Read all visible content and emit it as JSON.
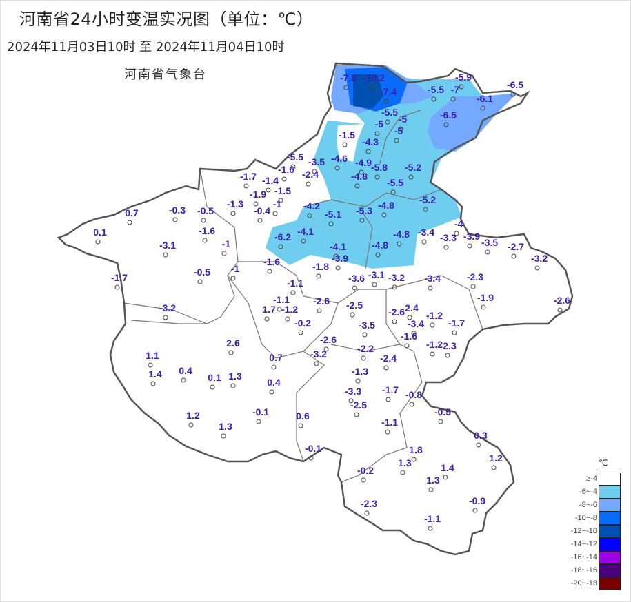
{
  "header": {
    "title": "河南省24小时变温实况图（单位：℃）",
    "subtitle": "2024年11月03日10时   至  2024年11月04日10时",
    "agency": "河南省气象台"
  },
  "legend": {
    "unit": "℃",
    "items": [
      {
        "label": "≥-4",
        "color": "#ffffff"
      },
      {
        "label": "-6~-4",
        "color": "#6fcdf0"
      },
      {
        "label": "-8~-6",
        "color": "#74a9ff"
      },
      {
        "label": "-10~-8",
        "color": "#0a6cfa"
      },
      {
        "label": "-12~-10",
        "color": "#0050b2"
      },
      {
        "label": "-14~-12",
        "color": "#0000ff"
      },
      {
        "label": "-16~-14",
        "color": "#9b00e6"
      },
      {
        "label": "-18~-16",
        "color": "#4a0078"
      },
      {
        "label": "-20~-18",
        "color": "#7a0000"
      }
    ]
  },
  "colors": {
    "label": "#3b1fb0",
    "border": "#555555"
  },
  "stations": [
    "-7.8",
    "-10.2",
    "-7.4",
    "-5.9",
    "-5.5",
    "-7",
    "-6.5",
    "-6.1",
    "-6.5",
    "-5.5",
    "-5",
    "-5",
    "-5",
    "-1.5",
    "-4.3",
    "-5.5",
    "-3.5",
    "-4.6",
    "-4.9",
    "-5.8",
    "-5.2",
    "-1.6",
    "-2.4",
    "-4.8",
    "-5.5",
    "-1.7",
    "-1.4",
    "-1.9",
    "-1.5",
    "-1.3",
    "-1",
    "-0.4",
    "-0.3",
    "-0.5",
    "0.7",
    "0.1",
    "-1.6",
    "-4.2",
    "-5.1",
    "-5.3",
    "-4.8",
    "-5.2",
    "-4",
    "-4.1",
    "-6.2",
    "-4.8",
    "-3.4",
    "-3.3",
    "-3.9",
    "-3.5",
    "-2.7",
    "-3.2",
    "-4.1",
    "-4.8",
    "-3.9",
    "-1",
    "-3.1",
    "-1.6",
    "-1.8",
    "-1",
    "-0.5",
    "-1.7",
    "-3.6",
    "-3.1",
    "-3.2",
    "-3.4",
    "-2.3",
    "-1.1",
    "-1.9",
    "-2.6",
    "-1.1",
    "-2.6",
    "-3.2",
    "1.7",
    "-1.2",
    "-2.5",
    "-2.6",
    "2.4",
    "-1.2",
    "-1.7",
    "-3.4",
    "-0.2",
    "-3.5",
    "-1.6",
    "-2.6",
    "2.6",
    "-1.2",
    "2.3",
    "-2.2",
    "-3.2",
    "1.1",
    "0.7",
    "-2.4",
    "1.4",
    "0.4",
    "0.1",
    "1.3",
    "-1.3",
    "0.4",
    "-3.3",
    "-1.7",
    "-0.8",
    "-2.5",
    "1.2",
    "-0.1",
    "-0.5",
    "0.6",
    "1.3",
    "-1.1",
    "0.3",
    "-0.1",
    "1.8",
    "1.2",
    "1.3",
    "-0.2",
    "1.4",
    "1.3",
    "-0.9",
    "-2.3",
    "-1.1"
  ]
}
